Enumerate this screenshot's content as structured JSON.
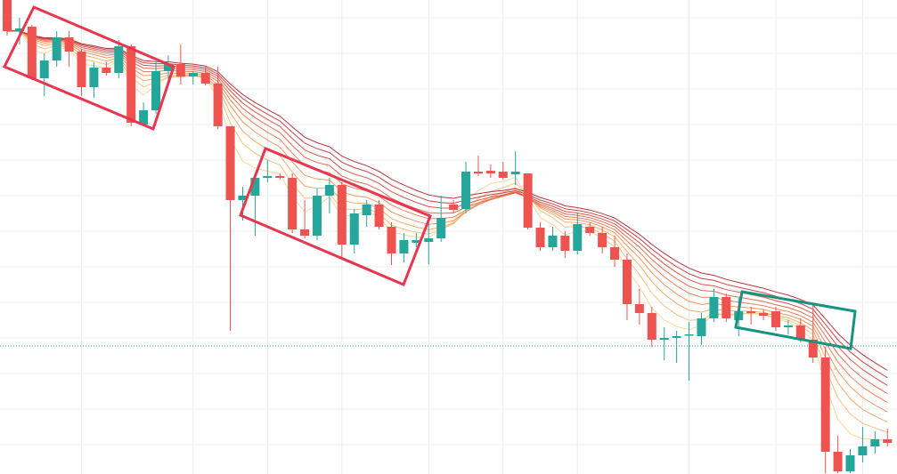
{
  "chart_data": {
    "type": "candlestick",
    "open": [
      540,
      505,
      510,
      452,
      472,
      498,
      482,
      442,
      464,
      458,
      488,
      400,
      416,
      460,
      468,
      454,
      458,
      446,
      398,
      315,
      320,
      340,
      342,
      340,
      282,
      275,
      320,
      332,
      265,
      298,
      310,
      285,
      255,
      267,
      268,
      272,
      310,
      305,
      347,
      348,
      347,
      344,
      345,
      284,
      262,
      275,
      258,
      285,
      278,
      262,
      248,
      198,
      188,
      158,
      160,
      164,
      162,
      182,
      206,
      180,
      190,
      188,
      190,
      172,
      174,
      158,
      138,
      32,
      10,
      28,
      38,
      46
    ],
    "high": [
      540,
      520,
      512,
      480,
      505,
      505,
      485,
      470,
      470,
      495,
      490,
      425,
      470,
      478,
      490,
      460,
      465,
      465,
      398,
      330,
      345,
      360,
      345,
      345,
      315,
      328,
      340,
      335,
      305,
      315,
      315,
      290,
      278,
      278,
      295,
      320,
      315,
      358,
      365,
      355,
      358,
      370,
      345,
      290,
      285,
      280,
      300,
      290,
      285,
      275,
      255,
      215,
      195,
      172,
      168,
      178,
      188,
      215,
      210,
      205,
      195,
      192,
      195,
      180,
      182,
      198,
      150,
      50,
      35,
      60,
      55,
      58
    ],
    "low": [
      500,
      490,
      450,
      432,
      465,
      465,
      432,
      430,
      455,
      452,
      398,
      398,
      412,
      450,
      445,
      445,
      444,
      395,
      168,
      292,
      275,
      335,
      338,
      278,
      272,
      270,
      300,
      250,
      255,
      285,
      282,
      242,
      245,
      262,
      243,
      268,
      300,
      300,
      342,
      340,
      338,
      332,
      282,
      258,
      258,
      250,
      254,
      275,
      255,
      240,
      180,
      175,
      150,
      135,
      132,
      112,
      152,
      178,
      178,
      162,
      175,
      180,
      168,
      164,
      155,
      132,
      8,
      8,
      8,
      20,
      30,
      38
    ],
    "close": [
      505,
      508,
      452,
      472,
      498,
      482,
      442,
      464,
      458,
      488,
      402,
      416,
      460,
      468,
      454,
      458,
      446,
      398,
      315,
      320,
      340,
      342,
      340,
      282,
      275,
      320,
      332,
      265,
      300,
      310,
      285,
      255,
      270,
      270,
      272,
      295,
      304,
      347,
      345,
      345,
      340,
      347,
      284,
      262,
      275,
      258,
      288,
      278,
      262,
      248,
      198,
      188,
      158,
      160,
      162,
      164,
      182,
      206,
      182,
      190,
      188,
      185,
      172,
      174,
      158,
      138,
      32,
      10,
      28,
      38,
      46,
      42
    ],
    "up_color": "#26a69a",
    "down_color": "#ef5350",
    "ylim": [
      0,
      540
    ],
    "yticks": [
      40,
      80,
      120,
      160,
      200,
      240,
      280,
      320,
      360,
      400,
      440,
      480,
      520
    ],
    "xlim": [
      0,
      71.7
    ],
    "xticks": [
      6,
      15,
      21,
      27,
      34,
      40,
      46,
      55,
      62,
      69
    ],
    "grid": true,
    "price_line": 151,
    "price_line_color": "#26a69a"
  }
}
